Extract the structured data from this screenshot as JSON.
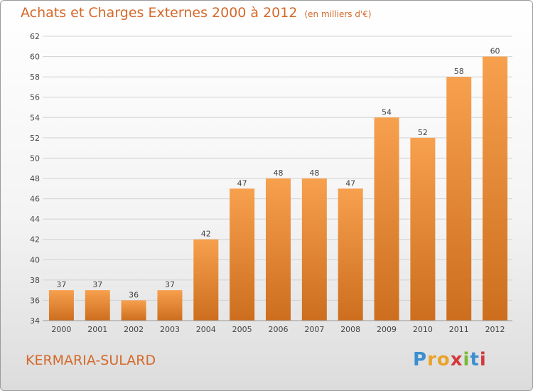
{
  "title": "Achats et Charges Externes 2000 à 2012",
  "unit_note": "(en milliers d'€)",
  "commune": "KERMARIA-SULARD",
  "logo": {
    "letters": [
      "P",
      "r",
      "o",
      "x",
      "i",
      "t",
      "i"
    ],
    "colors": [
      "#3b8fd0",
      "#e9a32a",
      "#e9a32a",
      "#d3393d",
      "#79b935",
      "#3b8fd0",
      "#d3393d"
    ]
  },
  "colors": {
    "bar_top": "#f7a04e",
    "bar_bottom": "#cc6e1e",
    "accent": "#d4692a"
  },
  "chart_data": {
    "type": "bar",
    "categories": [
      "2000",
      "2001",
      "2002",
      "2003",
      "2004",
      "2005",
      "2006",
      "2007",
      "2008",
      "2009",
      "2010",
      "2011",
      "2012"
    ],
    "values": [
      37,
      37,
      36,
      37,
      42,
      47,
      48,
      48,
      47,
      54,
      52,
      58,
      60
    ],
    "ylim": [
      34,
      62
    ],
    "yticks": [
      34,
      36,
      38,
      40,
      42,
      44,
      46,
      48,
      50,
      52,
      54,
      56,
      58,
      60,
      62
    ],
    "grid": true
  }
}
